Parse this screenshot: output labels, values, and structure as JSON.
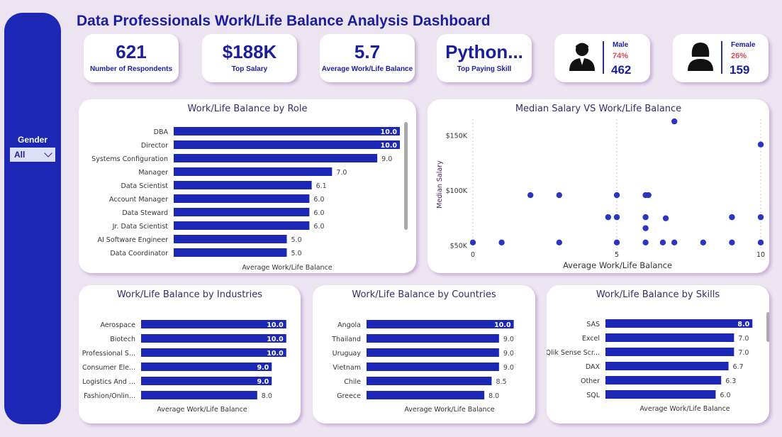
{
  "title": "Data Professionals Work/Life Balance Analysis Dashboard",
  "sidebar": {
    "slicer_label": "Gender",
    "slicer_value": "All"
  },
  "kpis": [
    {
      "value": "621",
      "label": "Number of Respondents"
    },
    {
      "value": "$188K",
      "label": "Top Salary"
    },
    {
      "value": "5.7",
      "label": "Average Work/Life Balance"
    },
    {
      "value": "Python...",
      "label": "Top Paying Skill"
    }
  ],
  "gender": {
    "male": {
      "label": "Male",
      "pct": "74%",
      "count": "462"
    },
    "female": {
      "label": "Female",
      "pct": "26%",
      "count": "159"
    }
  },
  "colors": {
    "bar": "#1c27b5",
    "accent_red": "#e0455a",
    "background": "#ece4f0"
  },
  "chart_data": [
    {
      "type": "bar",
      "title": "Work/Life Balance by Role",
      "xlabel": "Average Work/Life Balance",
      "xlim": [
        0,
        10.5
      ],
      "categories": [
        "DBA",
        "Director",
        "Systems Configuration",
        "Manager",
        "Data Scientist",
        "Account Manager",
        "Data Steward",
        "Jr. Data Scientist",
        "AI Software Engineer",
        "Data Coordinator"
      ],
      "values": [
        10.0,
        10.0,
        9.0,
        7.0,
        6.1,
        6.0,
        6.0,
        6.0,
        5.0,
        5.0
      ],
      "labels": [
        "10.0",
        "10.0",
        "9.0",
        "7.0",
        "6.1",
        "6.0",
        "6.0",
        "6.0",
        "5.0",
        "5.0"
      ]
    },
    {
      "type": "scatter",
      "title": "Median Salary VS Work/Life Balance",
      "xlabel": "Average Work/Life Balance",
      "ylabel": "Median Salary",
      "xlim": [
        0,
        10
      ],
      "ylim": [
        40000,
        165000
      ],
      "xticks": [
        {
          "value": 0,
          "label": "0"
        },
        {
          "value": 5,
          "label": "5"
        },
        {
          "value": 10,
          "label": "10"
        }
      ],
      "yticks": [
        {
          "value": 50000,
          "label": "$50K"
        },
        {
          "value": 100000,
          "label": "$100K"
        },
        {
          "value": 150000,
          "label": "$150K"
        }
      ],
      "points": [
        {
          "x": 0,
          "y": 53000
        },
        {
          "x": 1,
          "y": 53000
        },
        {
          "x": 2,
          "y": 96000
        },
        {
          "x": 3,
          "y": 96000
        },
        {
          "x": 3,
          "y": 53000
        },
        {
          "x": 4.7,
          "y": 76000
        },
        {
          "x": 5,
          "y": 96000
        },
        {
          "x": 5,
          "y": 76000
        },
        {
          "x": 5,
          "y": 53000
        },
        {
          "x": 6,
          "y": 96000
        },
        {
          "x": 6.1,
          "y": 96000
        },
        {
          "x": 6,
          "y": 76000
        },
        {
          "x": 6,
          "y": 66000
        },
        {
          "x": 6,
          "y": 53000
        },
        {
          "x": 6.6,
          "y": 53000
        },
        {
          "x": 6.7,
          "y": 75000
        },
        {
          "x": 7,
          "y": 163000
        },
        {
          "x": 7,
          "y": 53000
        },
        {
          "x": 8,
          "y": 53000
        },
        {
          "x": 9,
          "y": 76000
        },
        {
          "x": 9,
          "y": 53000
        },
        {
          "x": 10,
          "y": 142000
        },
        {
          "x": 10,
          "y": 76000
        },
        {
          "x": 10,
          "y": 53000
        }
      ]
    },
    {
      "type": "bar",
      "title": "Work/Life Balance by Industries",
      "xlabel": "Average Work/Life Balance",
      "xlim": [
        0,
        10.5
      ],
      "categories": [
        "Aerospace",
        "Biotech",
        "Professional S...",
        "Consumer Ele...",
        "Logistics And ...",
        "Fashion/Onlin..."
      ],
      "values": [
        10.0,
        10.0,
        10.0,
        9.0,
        9.0,
        8.0
      ],
      "labels": [
        "10.0",
        "10.0",
        "10.0",
        "9.0",
        "9.0",
        "8.0"
      ]
    },
    {
      "type": "bar",
      "title": "Work/Life Balance by Countries",
      "xlabel": "Average Work/Life Balance",
      "xlim": [
        0,
        10.5
      ],
      "categories": [
        "Angola",
        "Thailand",
        "Uruguay",
        "Vietnam",
        "Chile",
        "Greece"
      ],
      "values": [
        10.0,
        9.0,
        9.0,
        9.0,
        8.5,
        8.0
      ],
      "labels": [
        "10.0",
        "9.0",
        "9.0",
        "9.0",
        "8.5",
        "8.0"
      ]
    },
    {
      "type": "bar",
      "title": "Work/Life Balance by Skills",
      "xlabel": "Average Work/Life Balance",
      "xlim": [
        0,
        10.5
      ],
      "categories": [
        "SAS",
        "Excel",
        "Qlik Sense Scr...",
        "DAX",
        "Other",
        "SQL"
      ],
      "values": [
        8.0,
        7.0,
        7.0,
        6.7,
        6.3,
        6.0
      ],
      "labels": [
        "8.0",
        "7.0",
        "7.0",
        "6.7",
        "6.3",
        "6.0"
      ]
    }
  ]
}
